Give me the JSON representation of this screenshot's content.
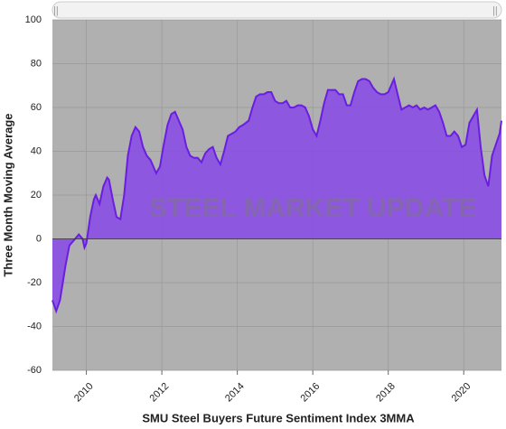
{
  "chart_data": {
    "type": "area",
    "x_label": "SMU Steel Buyers Future Sentiment Index 3MMA",
    "y_label": "Three Month Moving Average",
    "watermark": "STEEL MARKET UPDATE",
    "x": [
      2009.1,
      2009.2,
      2009.3,
      2009.45,
      2009.55,
      2009.7,
      2009.8,
      2009.9,
      2009.95,
      2010.0,
      2010.1,
      2010.2,
      2010.25,
      2010.35,
      2010.45,
      2010.55,
      2010.6,
      2010.7,
      2010.8,
      2010.9,
      2011.0,
      2011.1,
      2011.2,
      2011.3,
      2011.4,
      2011.5,
      2011.6,
      2011.7,
      2011.8,
      2011.85,
      2011.95,
      2012.05,
      2012.15,
      2012.25,
      2012.35,
      2012.45,
      2012.55,
      2012.65,
      2012.75,
      2012.85,
      2012.95,
      2013.05,
      2013.15,
      2013.25,
      2013.35,
      2013.45,
      2013.55,
      2013.65,
      2013.75,
      2013.85,
      2013.95,
      2014.05,
      2014.15,
      2014.3,
      2014.4,
      2014.5,
      2014.6,
      2014.7,
      2014.8,
      2014.9,
      2015.0,
      2015.1,
      2015.2,
      2015.3,
      2015.4,
      2015.5,
      2015.6,
      2015.7,
      2015.8,
      2015.9,
      2016.0,
      2016.1,
      2016.2,
      2016.3,
      2016.4,
      2016.5,
      2016.6,
      2016.7,
      2016.8,
      2016.9,
      2017.0,
      2017.1,
      2017.2,
      2017.3,
      2017.4,
      2017.5,
      2017.6,
      2017.7,
      2017.8,
      2017.9,
      2018.0,
      2018.1,
      2018.15,
      2018.25,
      2018.35,
      2018.45,
      2018.55,
      2018.65,
      2018.75,
      2018.85,
      2018.95,
      2019.05,
      2019.15,
      2019.25,
      2019.35,
      2019.45,
      2019.55,
      2019.65,
      2019.75,
      2019.85,
      2019.95,
      2020.05,
      2020.15,
      2020.25,
      2020.35,
      2020.45,
      2020.55,
      2020.65,
      2020.75,
      2020.85,
      2020.95,
      2021.0
    ],
    "series": [
      {
        "color": "#8a4fe3",
        "values": [
          -28,
          -33,
          -28,
          -12,
          -3,
          0,
          2,
          0,
          -4,
          -2,
          10,
          18,
          20,
          16,
          24,
          28,
          27,
          18,
          10,
          9,
          20,
          38,
          47,
          51,
          49,
          42,
          38,
          36,
          32,
          30,
          33,
          43,
          52,
          57,
          58,
          54,
          50,
          42,
          38,
          37,
          37,
          35,
          39,
          41,
          42,
          37,
          34,
          40,
          47,
          48,
          49,
          51,
          52,
          54,
          60,
          65,
          66,
          66,
          67,
          67,
          63,
          62,
          62,
          63,
          60,
          60,
          61,
          61,
          60,
          56,
          50,
          47,
          54,
          62,
          68,
          68,
          68,
          66,
          66,
          61,
          61,
          67,
          72,
          73,
          73,
          72,
          69,
          67,
          66,
          66,
          67,
          71,
          73,
          66,
          59,
          60,
          61,
          60,
          61,
          59,
          60,
          59,
          60,
          61,
          58,
          53,
          47,
          47,
          49,
          47,
          42,
          43,
          53,
          56,
          59,
          42,
          29,
          24,
          38,
          43,
          48,
          54
        ]
      }
    ],
    "xlim": [
      2009.1,
      2021.0
    ],
    "xticks": [
      2010,
      2012,
      2014,
      2016,
      2018,
      2020
    ],
    "ylim": [
      -60,
      100
    ],
    "yticks": [
      -60,
      -40,
      -20,
      0,
      20,
      40,
      60,
      80,
      100
    ],
    "grid": true
  }
}
